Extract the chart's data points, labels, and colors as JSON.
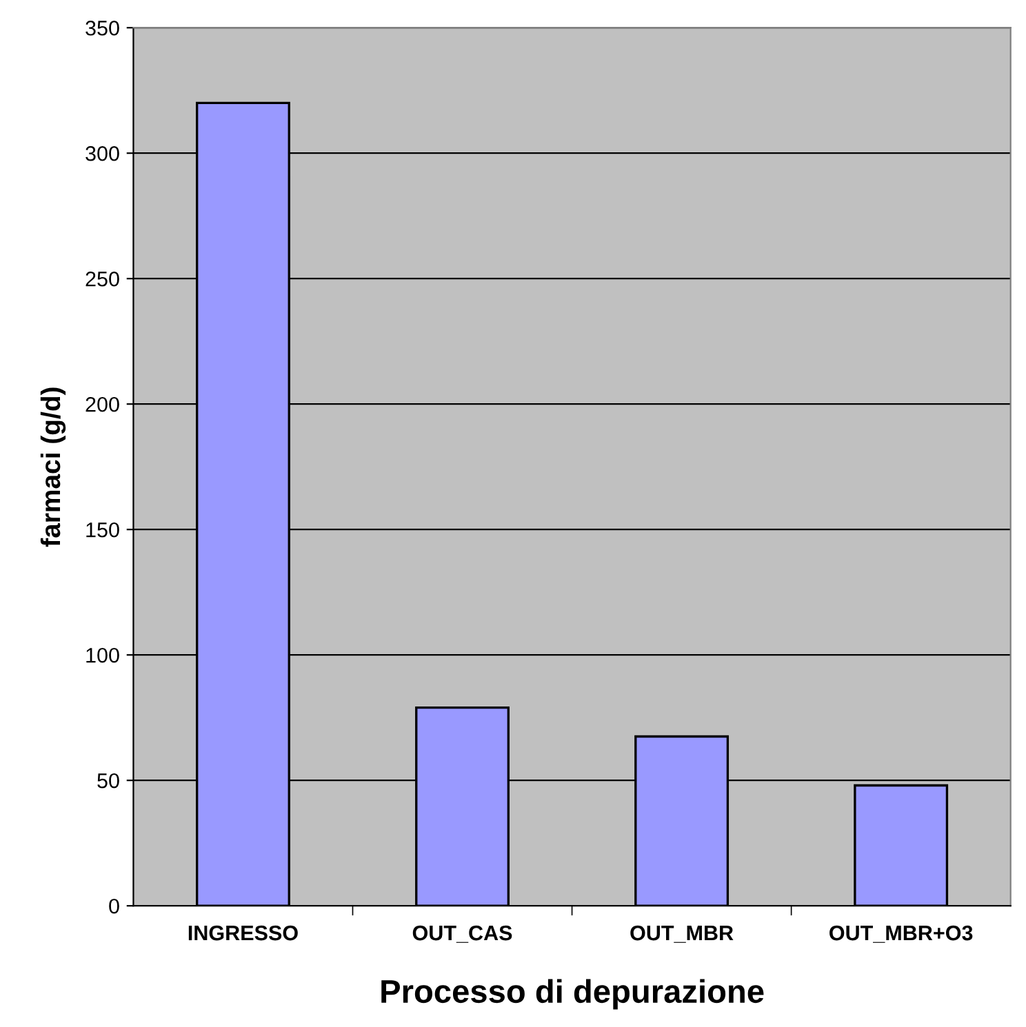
{
  "chart_data": {
    "type": "bar",
    "xlabel": "Processo di depurazione",
    "ylabel": "farmaci (g/d)",
    "categories": [
      "INGRESSO",
      "OUT_CAS",
      "OUT_MBR",
      "OUT_MBR+O3"
    ],
    "values": [
      320,
      79,
      67.5,
      48
    ],
    "color": "#9999ff",
    "ylim": [
      0,
      350
    ],
    "yticks": [
      0,
      50,
      100,
      150,
      200,
      250,
      300,
      350
    ],
    "grid": "y",
    "legend": false
  }
}
